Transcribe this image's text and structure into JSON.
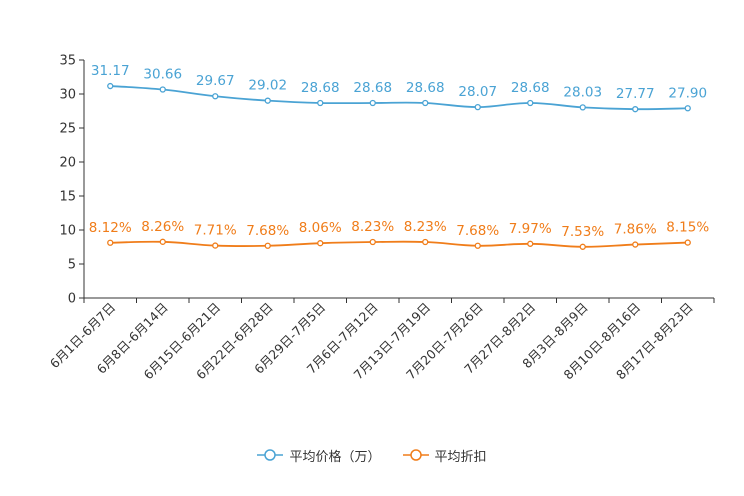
{
  "chart_data": {
    "type": "line",
    "categories": [
      "6月1日-6月7日",
      "6月8日-6月14日",
      "6月15日-6月21日",
      "6月22日-6月28日",
      "6月29日-7月5日",
      "7月6日-7月12日",
      "7月13日-7月19日",
      "7月20日-7月26日",
      "7月27日-8月2日",
      "8月3日-8月9日",
      "8月10日-8月16日",
      "8月17日-8月23日"
    ],
    "series": [
      {
        "name": "平均价格（万）",
        "color": "#4aa3d4",
        "values": [
          31.17,
          30.66,
          29.67,
          29.02,
          28.68,
          28.68,
          28.68,
          28.07,
          28.68,
          28.03,
          27.77,
          27.9
        ],
        "labels": [
          "31.17",
          "30.66",
          "29.67",
          "29.02",
          "28.68",
          "28.68",
          "28.68",
          "28.07",
          "28.68",
          "28.03",
          "27.77",
          "27.90"
        ]
      },
      {
        "name": "平均折扣",
        "color": "#f07d1a",
        "values": [
          8.12,
          8.26,
          7.71,
          7.68,
          8.06,
          8.23,
          8.23,
          7.68,
          7.97,
          7.53,
          7.86,
          8.15
        ],
        "labels": [
          "8.12%",
          "8.26%",
          "7.71%",
          "7.68%",
          "8.06%",
          "8.23%",
          "8.23%",
          "7.68%",
          "7.97%",
          "7.53%",
          "7.86%",
          "8.15%"
        ]
      }
    ],
    "ylim": [
      0,
      35
    ],
    "yticks": [
      0,
      5,
      10,
      15,
      20,
      25,
      30,
      35
    ],
    "legend_position": "bottom-center",
    "title": "",
    "xlabel": "",
    "ylabel": ""
  }
}
